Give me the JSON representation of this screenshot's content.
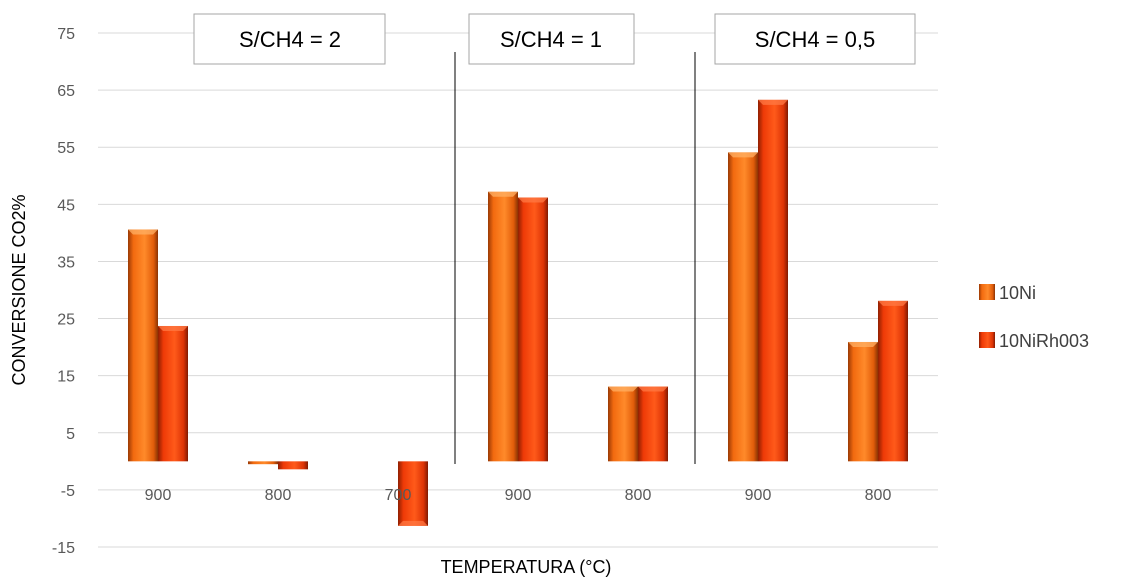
{
  "chart_data": {
    "type": "bar",
    "xlabel": "TEMPERATURA (°C)",
    "ylabel": "CONVERSIONE CO2%",
    "ylim": [
      -15,
      75
    ],
    "yticks": [
      75,
      65,
      55,
      45,
      35,
      25,
      15,
      5,
      -5,
      -15
    ],
    "grid": true,
    "legend_position": "right",
    "categories": [
      "900",
      "800",
      "700",
      "900",
      "800",
      "900",
      "800"
    ],
    "series": [
      {
        "name": "10Ni",
        "color": "#f26a0f",
        "values": [
          40.6,
          -0.5,
          0,
          47.2,
          13.1,
          54.1,
          20.9
        ]
      },
      {
        "name": "10NiRh003",
        "color": "#ee3a07",
        "values": [
          23.7,
          -1.4,
          -11.3,
          46.2,
          13.1,
          63.3,
          28.1
        ]
      }
    ],
    "groups": [
      {
        "label": "S/CH4 = 2"
      },
      {
        "label": "S/CH4 = 1"
      },
      {
        "label": "S/CH4 = 0,5"
      }
    ]
  }
}
